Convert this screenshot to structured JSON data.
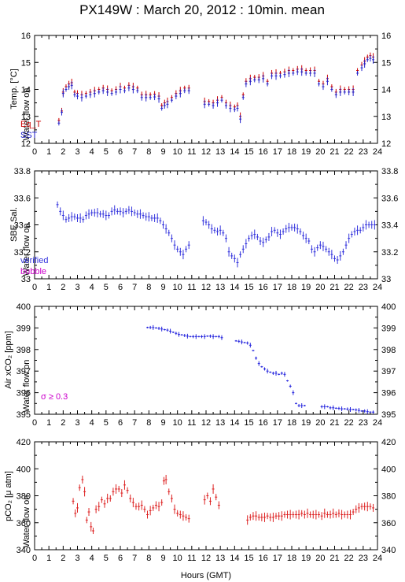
{
  "title": "PX149W : March 20, 2012 : 10min. mean",
  "x_axis": {
    "label": "Hours (GMT)",
    "ticks": [
      "0",
      "1",
      "2",
      "3",
      "4",
      "5",
      "6",
      "7",
      "8",
      "9",
      "10",
      "11",
      "12",
      "13",
      "14",
      "15",
      "16",
      "17",
      "18",
      "19",
      "20",
      "21",
      "22",
      "23",
      "24"
    ]
  },
  "water_flow_label": "Water flow on",
  "colors": {
    "eq": "#cc0000",
    "sst": "#2222cc",
    "verified": "#3333dd",
    "bubble": "#cc00cc",
    "air": "#2222dd",
    "pco2": "#dd2222"
  },
  "panels": {
    "temp": {
      "ylabel": "Temp. [°C]",
      "yticks": [
        "12",
        "13",
        "14",
        "15",
        "16"
      ],
      "legend": [
        "Eq_T",
        "SST"
      ]
    },
    "sal": {
      "ylabel": "SBE Sal.",
      "yticks": [
        "33",
        "33.2",
        "33.4",
        "33.6",
        "33.8"
      ],
      "legend": [
        "verified",
        "bubble"
      ]
    },
    "air": {
      "ylabel": "Air xCO₂ [ppm]",
      "yticks": [
        "395",
        "396",
        "397",
        "398",
        "399",
        "400"
      ],
      "note": "σ ≥ 0.3"
    },
    "pco2": {
      "ylabel": "pCO₂ [μ atm]",
      "yticks": [
        "340",
        "360",
        "380",
        "400",
        "420"
      ]
    }
  },
  "chart_data": [
    {
      "type": "scatter",
      "title": "",
      "xlabel": "Hours (GMT)",
      "ylabel": "Temp. [°C]",
      "xlim": [
        0,
        24
      ],
      "ylim": [
        12,
        16
      ],
      "series": [
        {
          "name": "Eq_T",
          "x": [
            1.7,
            1.9,
            2.0,
            2.2,
            2.4,
            2.6,
            2.8,
            3.0,
            3.3,
            3.6,
            3.9,
            4.2,
            4.5,
            4.8,
            5.1,
            5.4,
            5.7,
            6.0,
            6.3,
            6.6,
            6.9,
            7.2,
            7.5,
            7.8,
            8.1,
            8.4,
            8.7,
            8.9,
            9.1,
            9.3,
            9.6,
            9.9,
            10.2,
            10.5,
            10.8,
            11.9,
            12.2,
            12.5,
            12.8,
            13.1,
            13.4,
            13.7,
            14.0,
            14.2,
            14.4,
            14.6,
            14.8,
            15.1,
            15.4,
            15.7,
            16.0,
            16.3,
            16.6,
            16.9,
            17.2,
            17.5,
            17.8,
            18.1,
            18.4,
            18.7,
            19.0,
            19.3,
            19.6,
            19.9,
            20.2,
            20.5,
            20.8,
            21.1,
            21.4,
            21.7,
            22.0,
            22.3,
            22.6,
            22.9,
            23.1,
            23.3,
            23.5,
            23.7
          ],
          "y": [
            12.85,
            13.2,
            13.9,
            14.1,
            14.2,
            14.25,
            13.9,
            13.85,
            13.8,
            13.85,
            13.9,
            13.95,
            14.0,
            14.05,
            14.0,
            13.95,
            14.0,
            14.1,
            14.05,
            14.15,
            14.1,
            14.05,
            13.8,
            13.8,
            13.8,
            13.82,
            13.75,
            13.4,
            13.5,
            13.55,
            13.7,
            13.85,
            13.95,
            14.05,
            14.05,
            13.55,
            13.55,
            13.5,
            13.6,
            13.7,
            13.5,
            13.4,
            13.35,
            13.4,
            13.0,
            13.8,
            14.3,
            14.4,
            14.45,
            14.45,
            14.5,
            14.3,
            14.6,
            14.6,
            14.6,
            14.65,
            14.7,
            14.7,
            14.75,
            14.75,
            14.7,
            14.7,
            14.7,
            14.3,
            14.2,
            14.4,
            14.1,
            13.9,
            14.0,
            14.0,
            14.0,
            14.0,
            14.7,
            14.9,
            15.05,
            15.2,
            15.25,
            15.2
          ]
        },
        {
          "name": "SST",
          "x": [
            1.7,
            1.9,
            2.0,
            2.2,
            2.4,
            2.6,
            2.8,
            3.0,
            3.3,
            3.6,
            3.9,
            4.2,
            4.5,
            4.8,
            5.1,
            5.4,
            5.7,
            6.0,
            6.3,
            6.6,
            6.9,
            7.2,
            7.5,
            7.8,
            8.1,
            8.4,
            8.7,
            8.9,
            9.1,
            9.3,
            9.6,
            9.9,
            10.2,
            10.5,
            10.8,
            11.9,
            12.2,
            12.5,
            12.8,
            13.1,
            13.4,
            13.7,
            14.0,
            14.2,
            14.4,
            14.6,
            14.8,
            15.1,
            15.4,
            15.7,
            16.0,
            16.3,
            16.6,
            16.9,
            17.2,
            17.5,
            17.8,
            18.1,
            18.4,
            18.7,
            19.0,
            19.3,
            19.6,
            19.9,
            20.2,
            20.5,
            20.8,
            21.1,
            21.4,
            21.7,
            22.0,
            22.3,
            22.6,
            22.9,
            23.1,
            23.3,
            23.5,
            23.7
          ],
          "y": [
            12.75,
            13.15,
            13.85,
            14.0,
            14.1,
            14.15,
            13.8,
            13.75,
            13.7,
            13.75,
            13.8,
            13.85,
            13.9,
            13.95,
            13.9,
            13.85,
            13.9,
            14.0,
            13.95,
            14.05,
            14.0,
            13.95,
            13.7,
            13.7,
            13.7,
            13.72,
            13.65,
            13.3,
            13.4,
            13.45,
            13.6,
            13.75,
            13.85,
            13.95,
            13.95,
            13.45,
            13.45,
            13.4,
            13.5,
            13.6,
            13.4,
            13.3,
            13.25,
            13.3,
            12.9,
            13.7,
            14.2,
            14.3,
            14.35,
            14.35,
            14.4,
            14.2,
            14.5,
            14.5,
            14.5,
            14.55,
            14.6,
            14.6,
            14.65,
            14.65,
            14.6,
            14.6,
            14.6,
            14.2,
            14.1,
            14.3,
            14.0,
            13.8,
            13.9,
            13.9,
            13.9,
            13.9,
            14.6,
            14.8,
            14.95,
            15.1,
            15.15,
            15.1
          ]
        }
      ]
    },
    {
      "type": "scatter",
      "title": "",
      "xlabel": "Hours (GMT)",
      "ylabel": "SBE Sal.",
      "xlim": [
        0,
        24
      ],
      "ylim": [
        33,
        33.8
      ],
      "series": [
        {
          "name": "verified",
          "x": [
            1.6,
            1.8,
            2.0,
            2.2,
            2.4,
            2.6,
            2.8,
            3.0,
            3.2,
            3.4,
            3.6,
            3.8,
            4.0,
            4.2,
            4.4,
            4.6,
            4.8,
            5.0,
            5.2,
            5.4,
            5.6,
            5.8,
            6.0,
            6.2,
            6.4,
            6.6,
            6.8,
            7.0,
            7.2,
            7.4,
            7.6,
            7.8,
            8.0,
            8.2,
            8.4,
            8.6,
            8.8,
            9.0,
            9.2,
            9.4,
            9.6,
            9.8,
            10.0,
            10.2,
            10.4,
            10.6,
            10.8,
            11.8,
            12.0,
            12.2,
            12.4,
            12.6,
            12.8,
            13.0,
            13.2,
            13.4,
            13.6,
            13.8,
            14.0,
            14.2,
            14.4,
            14.6,
            14.8,
            15.0,
            15.2,
            15.4,
            15.6,
            15.8,
            16.0,
            16.2,
            16.4,
            16.6,
            16.8,
            17.0,
            17.2,
            17.4,
            17.6,
            17.8,
            18.0,
            18.2,
            18.4,
            18.6,
            18.8,
            19.0,
            19.2,
            19.4,
            19.6,
            19.8,
            20.0,
            20.2,
            20.4,
            20.6,
            20.8,
            21.0,
            21.2,
            21.4,
            21.6,
            21.8,
            22.0,
            22.2,
            22.4,
            22.6,
            22.8,
            23.0,
            23.2,
            23.4,
            23.6,
            23.8
          ],
          "y": [
            33.55,
            33.5,
            33.47,
            33.44,
            33.45,
            33.46,
            33.46,
            33.45,
            33.45,
            33.44,
            33.47,
            33.48,
            33.49,
            33.49,
            33.49,
            33.48,
            33.48,
            33.47,
            33.47,
            33.5,
            33.51,
            33.5,
            33.5,
            33.49,
            33.5,
            33.51,
            33.5,
            33.49,
            33.48,
            33.48,
            33.47,
            33.46,
            33.46,
            33.45,
            33.45,
            33.45,
            33.43,
            33.4,
            33.37,
            33.34,
            33.3,
            33.25,
            33.22,
            33.2,
            33.18,
            33.22,
            33.25,
            33.43,
            33.42,
            33.4,
            33.37,
            33.36,
            33.35,
            33.36,
            33.34,
            33.3,
            33.2,
            33.17,
            33.15,
            33.12,
            33.18,
            33.22,
            33.26,
            33.3,
            33.32,
            33.33,
            33.31,
            33.28,
            33.27,
            33.29,
            33.31,
            33.35,
            33.36,
            33.34,
            33.33,
            33.35,
            33.37,
            33.38,
            33.38,
            33.38,
            33.37,
            33.35,
            33.32,
            33.3,
            33.28,
            33.22,
            33.2,
            33.23,
            33.25,
            33.24,
            33.22,
            33.2,
            33.18,
            33.15,
            33.14,
            33.17,
            33.2,
            33.25,
            33.3,
            33.33,
            33.35,
            33.36,
            33.36,
            33.38,
            33.4,
            33.4,
            33.4,
            33.4
          ]
        },
        {
          "name": "bubble",
          "x": [],
          "y": []
        }
      ]
    },
    {
      "type": "scatter",
      "title": "",
      "xlabel": "Hours (GMT)",
      "ylabel": "Air xCO₂ [ppm]",
      "xlim": [
        0,
        24
      ],
      "ylim": [
        395,
        400
      ],
      "series": [
        {
          "name": "",
          "x": [
            7.9,
            8.1,
            8.3,
            8.5,
            8.7,
            8.9,
            9.1,
            9.3,
            9.5,
            9.7,
            9.9,
            10.1,
            10.3,
            10.5,
            10.7,
            10.9,
            11.1,
            11.3,
            11.5,
            11.7,
            11.9,
            12.1,
            12.3,
            12.5,
            12.7,
            12.9,
            13.1,
            14.1,
            14.3,
            14.5,
            14.7,
            14.9,
            15.1,
            15.3,
            15.5,
            15.7,
            15.9,
            16.1,
            16.3,
            16.5,
            16.7,
            16.9,
            17.1,
            17.3,
            17.5,
            17.7,
            17.9,
            18.1,
            18.3,
            18.5,
            18.7,
            18.9,
            20.1,
            20.3,
            20.5,
            20.7,
            20.9,
            21.1,
            21.3,
            21.5,
            21.7,
            21.9,
            22.1,
            22.3,
            22.5,
            22.7,
            22.9,
            23.1,
            23.3,
            23.5,
            23.7
          ],
          "y": [
            399.02,
            399.02,
            399.02,
            399.0,
            398.98,
            398.95,
            398.92,
            398.9,
            398.85,
            398.8,
            398.75,
            398.7,
            398.68,
            398.65,
            398.62,
            398.6,
            398.6,
            398.6,
            398.6,
            398.6,
            398.6,
            398.62,
            398.62,
            398.6,
            398.6,
            398.6,
            398.55,
            398.4,
            398.38,
            398.35,
            398.32,
            398.3,
            398.2,
            397.95,
            397.6,
            397.35,
            397.2,
            397.1,
            397.0,
            396.95,
            396.9,
            396.9,
            396.85,
            396.9,
            396.85,
            396.55,
            396.3,
            396.0,
            395.5,
            395.4,
            395.4,
            395.4,
            395.35,
            395.35,
            395.35,
            395.3,
            395.3,
            395.28,
            395.27,
            395.25,
            395.25,
            395.24,
            395.22,
            395.22,
            395.2,
            395.18,
            395.15,
            395.15,
            395.12,
            395.1,
            395.1
          ]
        }
      ]
    },
    {
      "type": "scatter",
      "title": "",
      "xlabel": "Hours (GMT)",
      "ylabel": "pCO₂ [μ atm]",
      "xlim": [
        0,
        24
      ],
      "ylim": [
        340,
        420
      ],
      "series": [
        {
          "name": "",
          "x": [
            2.7,
            2.85,
            3.0,
            3.15,
            3.35,
            3.5,
            3.65,
            3.8,
            3.95,
            4.1,
            4.3,
            4.5,
            4.7,
            4.9,
            5.1,
            5.3,
            5.5,
            5.7,
            5.9,
            6.1,
            6.3,
            6.5,
            6.7,
            6.9,
            7.1,
            7.3,
            7.5,
            7.7,
            7.9,
            8.1,
            8.3,
            8.5,
            8.7,
            8.9,
            9.05,
            9.2,
            9.4,
            9.6,
            9.8,
            10.0,
            10.2,
            10.4,
            10.6,
            10.8,
            11.9,
            12.1,
            12.3,
            12.5,
            12.7,
            12.9,
            14.9,
            15.1,
            15.3,
            15.5,
            15.7,
            15.9,
            16.1,
            16.3,
            16.5,
            16.7,
            16.9,
            17.1,
            17.3,
            17.5,
            17.7,
            17.9,
            18.1,
            18.3,
            18.5,
            18.7,
            18.9,
            19.1,
            19.3,
            19.5,
            19.7,
            19.9,
            20.1,
            20.3,
            20.5,
            20.7,
            20.9,
            21.1,
            21.3,
            21.5,
            21.7,
            21.9,
            22.1,
            22.3,
            22.5,
            22.7,
            22.9,
            23.1,
            23.3,
            23.5,
            23.7
          ],
          "y": [
            376,
            367,
            371,
            386,
            392,
            383,
            362,
            368,
            357,
            354,
            370,
            372,
            377,
            374,
            378,
            378,
            383,
            385,
            385,
            382,
            388,
            384,
            378,
            375,
            372,
            372,
            373,
            370,
            366,
            369,
            371,
            373,
            372,
            375,
            391,
            392,
            383,
            378,
            370,
            367,
            366,
            365,
            364,
            363,
            377,
            380,
            376,
            385,
            379,
            373,
            362,
            364,
            365,
            365,
            364,
            364,
            364,
            365,
            364,
            364,
            365,
            365,
            365,
            366,
            366,
            366,
            366,
            366,
            366,
            367,
            366,
            367,
            366,
            366,
            366,
            366,
            365,
            367,
            366,
            366,
            367,
            366,
            367,
            366,
            366,
            366,
            366,
            368,
            370,
            371,
            372,
            372,
            372,
            372,
            371
          ]
        }
      ]
    }
  ]
}
